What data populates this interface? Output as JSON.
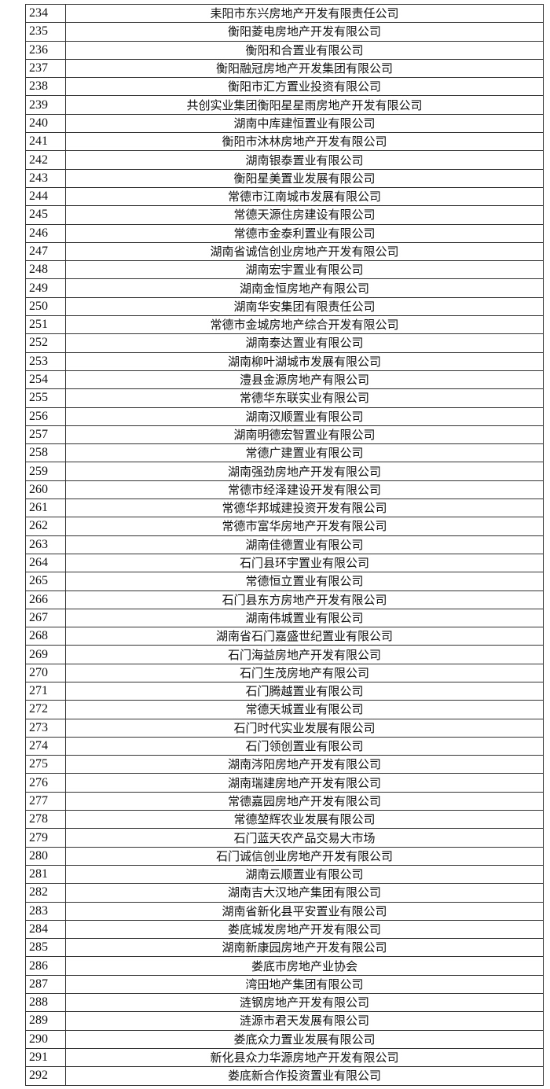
{
  "rows": [
    {
      "no": "234",
      "name": "耒阳市东兴房地产开发有限责任公司"
    },
    {
      "no": "235",
      "name": "衡阳菱电房地产开发有限公司"
    },
    {
      "no": "236",
      "name": "衡阳和合置业有限公司"
    },
    {
      "no": "237",
      "name": "衡阳融冠房地产开发集团有限公司"
    },
    {
      "no": "238",
      "name": "衡阳市汇方置业投资有限公司"
    },
    {
      "no": "239",
      "name": "共创实业集团衡阳星星雨房地产开发有限公司"
    },
    {
      "no": "240",
      "name": "湖南中库建恒置业有限公司"
    },
    {
      "no": "241",
      "name": "衡阳市沐林房地产开发有限公司"
    },
    {
      "no": "242",
      "name": "湖南银泰置业有限公司"
    },
    {
      "no": "243",
      "name": "衡阳星美置业发展有限公司"
    },
    {
      "no": "244",
      "name": "常德市江南城市发展有限公司"
    },
    {
      "no": "245",
      "name": "常德天源住房建设有限公司"
    },
    {
      "no": "246",
      "name": "常德市金泰利置业有限公司"
    },
    {
      "no": "247",
      "name": "湖南省诚信创业房地产开发有限公司"
    },
    {
      "no": "248",
      "name": "湖南宏宇置业有限公司"
    },
    {
      "no": "249",
      "name": "湖南金恒房地产有限公司"
    },
    {
      "no": "250",
      "name": "湖南华安集团有限责任公司"
    },
    {
      "no": "251",
      "name": "常德市金城房地产综合开发有限公司"
    },
    {
      "no": "252",
      "name": "湖南泰达置业有限公司"
    },
    {
      "no": "253",
      "name": "湖南柳叶湖城市发展有限公司"
    },
    {
      "no": "254",
      "name": "澧县金源房地产有限公司"
    },
    {
      "no": "255",
      "name": "常德华东联实业有限公司"
    },
    {
      "no": "256",
      "name": "湖南汉顺置业有限公司"
    },
    {
      "no": "257",
      "name": "湖南明德宏智置业有限公司"
    },
    {
      "no": "258",
      "name": "常德广建置业有限公司"
    },
    {
      "no": "259",
      "name": "湖南强劲房地产开发有限公司"
    },
    {
      "no": "260",
      "name": "常德市经泽建设开发有限公司"
    },
    {
      "no": "261",
      "name": "常德华邦城建投资开发有限公司"
    },
    {
      "no": "262",
      "name": "常德市富华房地产开发有限公司"
    },
    {
      "no": "263",
      "name": "湖南佳德置业有限公司"
    },
    {
      "no": "264",
      "name": "石门县环宇置业有限公司"
    },
    {
      "no": "265",
      "name": "常德恒立置业有限公司"
    },
    {
      "no": "266",
      "name": "石门县东方房地产开发有限公司"
    },
    {
      "no": "267",
      "name": "湖南伟城置业有限公司"
    },
    {
      "no": "268",
      "name": "湖南省石门嘉盛世纪置业有限公司"
    },
    {
      "no": "269",
      "name": "石门海益房地产开发有限公司"
    },
    {
      "no": "270",
      "name": "石门生茂房地产有限公司"
    },
    {
      "no": "271",
      "name": "石门腾越置业有限公司"
    },
    {
      "no": "272",
      "name": "常德天城置业有限公司"
    },
    {
      "no": "273",
      "name": "石门时代实业发展有限公司"
    },
    {
      "no": "274",
      "name": "石门领创置业有限公司"
    },
    {
      "no": "275",
      "name": "湖南涔阳房地产开发有限公司"
    },
    {
      "no": "276",
      "name": "湖南瑞建房地产开发有限公司"
    },
    {
      "no": "277",
      "name": "常德嘉园房地产开发有限公司"
    },
    {
      "no": "278",
      "name": "常德堃辉农业发展有限公司"
    },
    {
      "no": "279",
      "name": "石门蓝天农产品交易大市场"
    },
    {
      "no": "280",
      "name": "石门诚信创业房地产开发有限公司"
    },
    {
      "no": "281",
      "name": "湖南云顺置业有限公司"
    },
    {
      "no": "282",
      "name": "湖南吉大汉地产集团有限公司"
    },
    {
      "no": "283",
      "name": "湖南省新化县平安置业有限公司"
    },
    {
      "no": "284",
      "name": "娄底城发房地产开发有限公司"
    },
    {
      "no": "285",
      "name": "湖南新康园房地产开发有限公司"
    },
    {
      "no": "286",
      "name": "娄底市房地产业协会"
    },
    {
      "no": "287",
      "name": "湾田地产集团有限公司"
    },
    {
      "no": "288",
      "name": "涟钢房地产开发有限公司"
    },
    {
      "no": "289",
      "name": "涟源市君天发展有限公司"
    },
    {
      "no": "290",
      "name": "娄底众力置业发展有限公司"
    },
    {
      "no": "291",
      "name": "新化县众力华源房地产开发有限公司"
    },
    {
      "no": "292",
      "name": "娄底新合作投资置业有限公司"
    }
  ]
}
